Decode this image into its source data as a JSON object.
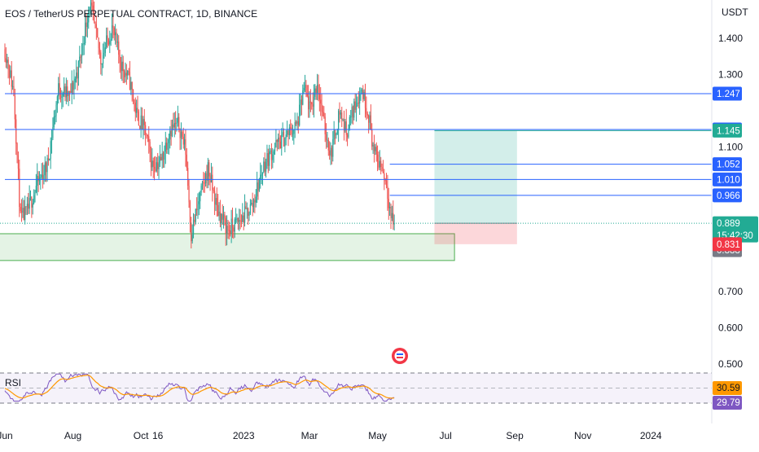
{
  "header": {
    "title": "EOS / TetherUS PERPETUAL CONTRACT, 1D, BINANCE",
    "currency": "USDT"
  },
  "price_axis": {
    "ticks": [
      {
        "label": "1.400",
        "value": 1.4
      },
      {
        "label": "1.300",
        "value": 1.3
      },
      {
        "label": "1.100",
        "value": 1.1
      },
      {
        "label": "0.700",
        "value": 0.7
      },
      {
        "label": "0.600",
        "value": 0.6
      },
      {
        "label": "0.500",
        "value": 0.5
      }
    ]
  },
  "time_axis": {
    "labels": [
      {
        "text": "Jun",
        "day": 0
      },
      {
        "text": "Aug",
        "day": 61
      },
      {
        "text": "Oct",
        "day": 122
      },
      {
        "text": "16",
        "day": 137
      },
      {
        "text": "2023",
        "day": 214
      },
      {
        "text": "Mar",
        "day": 273
      },
      {
        "text": "May",
        "day": 334
      },
      {
        "text": "Jul",
        "day": 395
      },
      {
        "text": "Sep",
        "day": 457
      },
      {
        "text": "Nov",
        "day": 518
      },
      {
        "text": "2024",
        "day": 579
      }
    ]
  },
  "levels": [
    {
      "label": "1.247",
      "value": 1.247,
      "color": "#2962ff",
      "from_day": 0
    },
    {
      "label": "1.148",
      "value": 1.148,
      "color": "#2962ff",
      "from_day": 0
    },
    {
      "label": "1.145",
      "value": 1.145,
      "color": "#22ab94",
      "from_day": 385
    },
    {
      "label": "1.052",
      "value": 1.052,
      "color": "#2962ff",
      "from_day": 345
    },
    {
      "label": "1.010",
      "value": 1.01,
      "color": "#2962ff",
      "from_day": 0
    },
    {
      "label": "0.966",
      "value": 0.966,
      "color": "#2962ff",
      "from_day": 345
    }
  ],
  "last_price": {
    "label": "0.889",
    "countdown": "15:42:30",
    "value": 0.889,
    "color": "#22ab94"
  },
  "stop_badge": {
    "label": "0.888",
    "value": 0.888,
    "color": "#787b86"
  },
  "loss_badge": {
    "label": "0.831",
    "value": 0.831,
    "color": "#f23645"
  },
  "demand_zone": {
    "top": 0.86,
    "bottom": 0.786,
    "from_day": 0,
    "to_day": 403
  },
  "position": {
    "from_day": 385,
    "to_day": 459,
    "entry": 0.889,
    "target": 1.145,
    "stop": 0.831
  },
  "rsi": {
    "label": "RSI",
    "value_label": "30.59",
    "value_color": "#ff9800",
    "ma_label": "29.79",
    "ma_color": "#7e57c2"
  },
  "chart_data": {
    "type": "candlestick",
    "title": "EOS / TetherUS PERPETUAL CONTRACT, 1D, BINANCE",
    "ylabel": "USDT",
    "ylim": [
      0.48,
      1.5
    ],
    "x_range": [
      "Jun 2022",
      "2024"
    ],
    "grid": false,
    "price_path": [
      [
        0,
        1.37
      ],
      [
        8,
        1.25
      ],
      [
        14,
        0.9
      ],
      [
        20,
        0.92
      ],
      [
        28,
        0.99
      ],
      [
        38,
        1.05
      ],
      [
        48,
        1.26
      ],
      [
        58,
        1.24
      ],
      [
        66,
        1.32
      ],
      [
        76,
        1.5
      ],
      [
        86,
        1.34
      ],
      [
        96,
        1.43
      ],
      [
        104,
        1.33
      ],
      [
        112,
        1.28
      ],
      [
        118,
        1.19
      ],
      [
        126,
        1.14
      ],
      [
        132,
        1.05
      ],
      [
        140,
        1.06
      ],
      [
        148,
        1.15
      ],
      [
        156,
        1.16
      ],
      [
        162,
        1.09
      ],
      [
        167,
        0.86
      ],
      [
        174,
        0.95
      ],
      [
        182,
        1.04
      ],
      [
        190,
        0.93
      ],
      [
        200,
        0.87
      ],
      [
        212,
        0.9
      ],
      [
        222,
        0.94
      ],
      [
        232,
        1.05
      ],
      [
        242,
        1.1
      ],
      [
        252,
        1.13
      ],
      [
        262,
        1.16
      ],
      [
        268,
        1.26
      ],
      [
        274,
        1.2
      ],
      [
        280,
        1.28
      ],
      [
        286,
        1.16
      ],
      [
        292,
        1.08
      ],
      [
        300,
        1.2
      ],
      [
        306,
        1.14
      ],
      [
        314,
        1.22
      ],
      [
        320,
        1.26
      ],
      [
        326,
        1.19
      ],
      [
        331,
        1.08
      ],
      [
        337,
        1.05
      ],
      [
        342,
        1.0
      ],
      [
        346,
        0.91
      ],
      [
        349,
        0.889
      ]
    ],
    "horizontal_levels": [
      1.247,
      1.148,
      1.145,
      1.052,
      1.01,
      0.966
    ],
    "last_price": 0.889,
    "rsi": {
      "last": 30.59,
      "ma_last": 29.79
    }
  }
}
